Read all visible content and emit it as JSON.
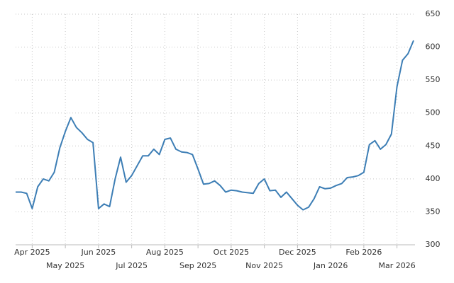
{
  "chart_data": {
    "type": "line",
    "categories": [
      null,
      null,
      null,
      "Apr 2025",
      null,
      null,
      null,
      null,
      null,
      "May 2025",
      null,
      null,
      null,
      null,
      null,
      "Jun 2025",
      null,
      null,
      null,
      null,
      null,
      "Jul 2025",
      null,
      null,
      null,
      null,
      null,
      "Aug 2025",
      null,
      null,
      null,
      null,
      null,
      "Sep 2025",
      null,
      null,
      null,
      null,
      null,
      "Oct 2025",
      null,
      null,
      null,
      null,
      null,
      "Nov 2025",
      null,
      null,
      null,
      null,
      null,
      "Dec 2025",
      null,
      null,
      null,
      null,
      null,
      "Jan 2026",
      null,
      null,
      null,
      null,
      null,
      "Feb 2026",
      null,
      null,
      null,
      null,
      null,
      "Mar 2026",
      null,
      null,
      null
    ],
    "values": [
      380,
      380,
      378,
      355,
      388,
      400,
      397,
      410,
      447,
      472,
      493,
      478,
      470,
      460,
      455,
      355,
      362,
      358,
      400,
      433,
      395,
      405,
      420,
      435,
      435,
      445,
      437,
      460,
      462,
      445,
      441,
      440,
      437,
      415,
      392,
      393,
      397,
      390,
      380,
      383,
      382,
      380,
      379,
      378,
      393,
      400,
      382,
      383,
      372,
      380,
      370,
      360,
      353,
      357,
      370,
      388,
      385,
      386,
      390,
      393,
      402,
      403,
      405,
      410,
      452,
      458,
      445,
      452,
      468,
      540,
      580,
      590,
      610
    ],
    "color": "#3d7eb5",
    "ylim": [
      300,
      650
    ],
    "yticks": [
      300,
      350,
      400,
      450,
      500,
      550,
      600,
      650
    ],
    "grid": true
  }
}
